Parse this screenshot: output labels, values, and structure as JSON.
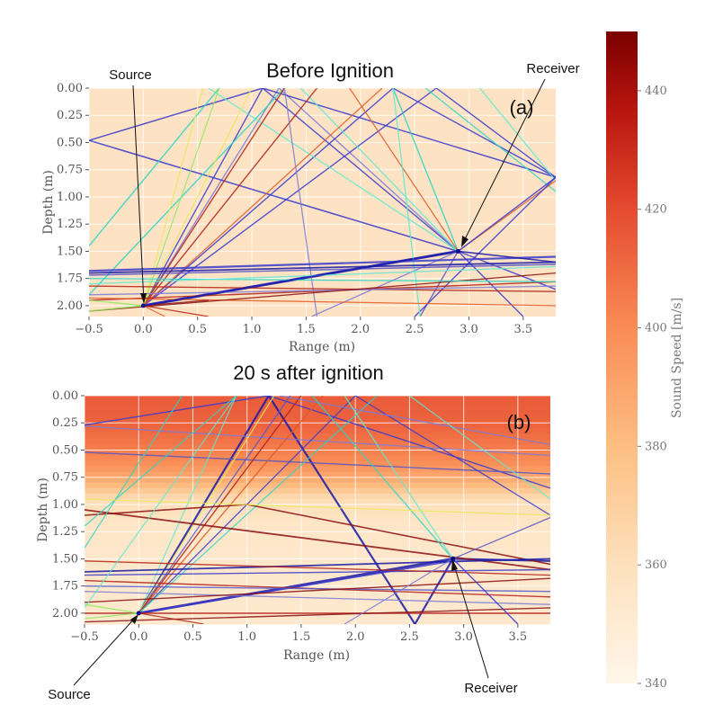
{
  "chart_data": [
    {
      "type": "heatmap",
      "panel": "a",
      "title": "Before Ignition",
      "panel_label": "(a)",
      "xlabel": "Range (m)",
      "ylabel": "Depth (m)",
      "xlim": [
        -0.5,
        3.8
      ],
      "ylim": [
        2.1,
        0.0
      ],
      "xticks": [
        "−0.5",
        "0.0",
        "0.5",
        "1.0",
        "1.5",
        "2.0",
        "2.5",
        "3.0",
        "3.5"
      ],
      "yticks": [
        "0.00",
        "0.25",
        "0.50",
        "0.75",
        "1.00",
        "1.25",
        "1.50",
        "1.75",
        "2.00"
      ],
      "grid": true,
      "source": {
        "x": 0.0,
        "y": 2.0,
        "label": "Source"
      },
      "receiver": {
        "x": 2.9,
        "y": 1.5,
        "label": "Receiver"
      },
      "sound_speed_field": "uniform ~352 m/s"
    },
    {
      "type": "heatmap",
      "panel": "b",
      "title": "20 s after ignition",
      "panel_label": "(b)",
      "xlabel": "Range (m)",
      "ylabel": "Depth (m)",
      "xlim": [
        -0.5,
        3.8
      ],
      "ylim": [
        2.1,
        0.0
      ],
      "xticks": [
        "−0.5",
        "0.0",
        "0.5",
        "1.0",
        "1.5",
        "2.0",
        "2.5",
        "3.0",
        "3.5"
      ],
      "yticks": [
        "0.00",
        "0.25",
        "0.50",
        "0.75",
        "1.00",
        "1.25",
        "1.50",
        "1.75",
        "2.00"
      ],
      "grid": true,
      "source": {
        "x": 0.0,
        "y": 2.0,
        "label": "Source"
      },
      "receiver": {
        "x": 2.9,
        "y": 1.5,
        "label": "Receiver"
      },
      "sound_speed_profile": [
        {
          "depth": 0.0,
          "speed": 415
        },
        {
          "depth": 0.3,
          "speed": 412
        },
        {
          "depth": 0.6,
          "speed": 400
        },
        {
          "depth": 0.8,
          "speed": 385
        },
        {
          "depth": 0.95,
          "speed": 362
        },
        {
          "depth": 1.2,
          "speed": 355
        },
        {
          "depth": 2.1,
          "speed": 352
        }
      ]
    }
  ],
  "colorbar": {
    "label": "Sound Speed [m/s]",
    "min": 340,
    "max": 450,
    "ticks": [
      "340",
      "360",
      "380",
      "400",
      "420",
      "440"
    ],
    "tick_values": [
      340,
      360,
      380,
      400,
      420,
      440
    ]
  },
  "annotations": {
    "a_source": "Source",
    "a_receiver": "Receiver",
    "b_source": "Source",
    "b_receiver": "Receiver"
  },
  "ray_colors": [
    "#1a1aa8",
    "#3a3acc",
    "#5757c9",
    "#7c7cd6",
    "#2bd4c4",
    "#5ee8d0",
    "#e9e95a",
    "#8ee860",
    "#e05a2a",
    "#b22218",
    "#8a1010"
  ]
}
